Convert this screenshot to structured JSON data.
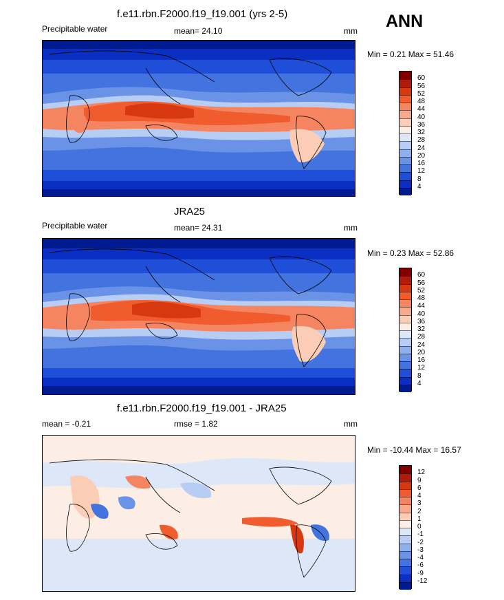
{
  "season": "ANN",
  "panels": [
    {
      "id": "model",
      "title": "f.e11.rbn.F2000.f19_f19.001 (yrs 2-5)",
      "left_label": "Precipitable water",
      "center_label": "mean=  24.10",
      "units": "mm",
      "minmax": "Min =   0.21 Max =   51.46",
      "scale": "abs"
    },
    {
      "id": "obs",
      "title": "JRA25",
      "left_label": "Precipitable water",
      "center_label": "mean=  24.31",
      "units": "mm",
      "minmax": "Min =   0.23 Max =   52.86",
      "scale": "abs"
    },
    {
      "id": "diff",
      "title": "f.e11.rbn.F2000.f19_f19.001 - JRA25",
      "left_label": "mean =  -0.21",
      "center_label": "rmse =   1.82",
      "units": "mm",
      "minmax": "Min = -10.44 Max =  16.57",
      "scale": "diff"
    }
  ],
  "colorbars": {
    "abs": {
      "labels": [
        "60",
        "56",
        "52",
        "48",
        "44",
        "40",
        "36",
        "32",
        "28",
        "24",
        "20",
        "16",
        "12",
        "8",
        "4"
      ],
      "colors": [
        "#800000",
        "#b01c0c",
        "#d8380f",
        "#f05c2e",
        "#f58560",
        "#f9a98b",
        "#fbcdb6",
        "#fdeee5",
        "#dce7f8",
        "#b7cdf4",
        "#8fb0ee",
        "#6a92e6",
        "#4273df",
        "#1f4fd9",
        "#0a2fc2",
        "#001b8f"
      ]
    },
    "diff": {
      "labels": [
        "12",
        "9",
        "6",
        "4",
        "3",
        "2",
        "1",
        "0",
        "-1",
        "-2",
        "-3",
        "-4",
        "-6",
        "-9",
        "-12"
      ],
      "colors": [
        "#800000",
        "#b01c0c",
        "#d8380f",
        "#f05c2e",
        "#f58560",
        "#f9a98b",
        "#fbcdb6",
        "#fdeee5",
        "#dce7f8",
        "#b7cdf4",
        "#8fb0ee",
        "#6a92e6",
        "#4273df",
        "#1f4fd9",
        "#0a2fc2",
        "#001b8f"
      ]
    }
  }
}
